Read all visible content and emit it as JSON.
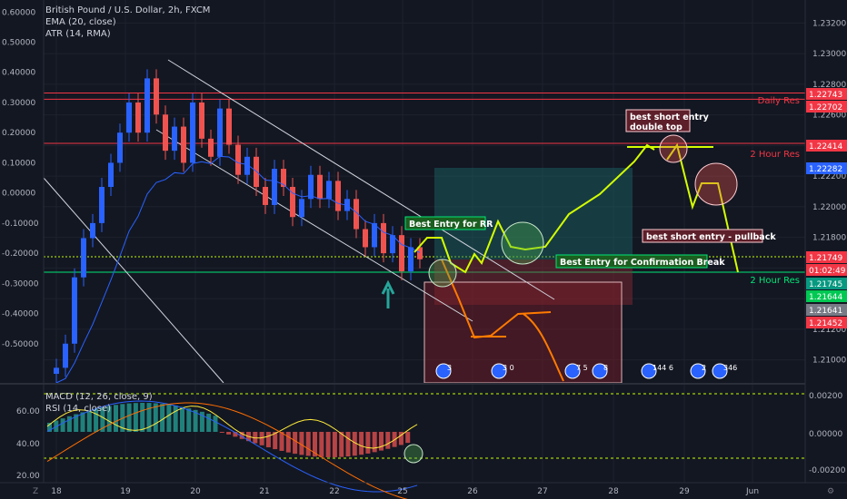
{
  "header": {
    "symbol": "British Pound / U.S. Dollar, 2h, FXCM",
    "ema": "EMA (20, close)",
    "atr": "ATR (14, RMA)"
  },
  "lower_pane": {
    "macd": "MACD (12, 26, close, 9)",
    "rsi": "RSI (14, close)"
  },
  "annotations": {
    "best_entry_rr": "Best Entry for RR",
    "best_entry_break": "Best Entry for Confirmation Break",
    "short_double_top_1": "best short entry",
    "short_double_top_2": "double top",
    "short_pullback": "best short entry - pullback",
    "daily_res": "Daily Res",
    "two_hour_res_top": "2 Hour Res",
    "two_hour_res_bottom": "2 Hour Res"
  },
  "price_tags": [
    {
      "text": "1.22743",
      "color": "#f23645"
    },
    {
      "text": "1.22702",
      "color": "#f23645"
    },
    {
      "text": "1.22414",
      "color": "#f23645"
    },
    {
      "text": "1.22282",
      "color": "#2962ff"
    },
    {
      "text": "1.21749",
      "color": "#f23645"
    },
    {
      "text": "01:02:49",
      "color": "#f23645"
    },
    {
      "text": "1.21745",
      "color": "#089981"
    },
    {
      "text": "1.21644",
      "color": "#00c853"
    },
    {
      "text": "1.21641",
      "color": "#787b86"
    },
    {
      "text": "1.21452",
      "color": "#f23645"
    }
  ],
  "event_badges": [
    "3",
    "3 0",
    "7 5",
    "8",
    "144 6",
    "2",
    "346"
  ],
  "colors": {
    "up": "#2962ff",
    "down": "#ef5350",
    "ema": "#2962ff",
    "background": "#131722"
  },
  "chart_data": {
    "type": "candlestick",
    "title": "British Pound / U.S. Dollar, 2h, FXCM",
    "x_ticks": [
      "18",
      "19",
      "20",
      "21",
      "22",
      "25",
      "26",
      "27",
      "28",
      "29",
      "Jun"
    ],
    "right_axis_ticks": [
      "1.23200",
      "1.23000",
      "1.22800",
      "1.22600",
      "1.22400",
      "1.22200",
      "1.22000",
      "1.21800",
      "1.21600",
      "1.21400",
      "1.21200",
      "1.21000"
    ],
    "right_ylim": [
      1.2085,
      1.2335
    ],
    "left_axis_ticks": [
      "0.60000",
      "0.50000",
      "0.40000",
      "0.30000",
      "0.20000",
      "0.10000",
      "0.00000",
      "-0.10000",
      "-0.20000",
      "-0.30000",
      "-0.40000",
      "-0.50000"
    ],
    "left_ylim": [
      -0.63,
      0.64
    ],
    "lower_left_ticks": [
      "60.00",
      "40.00",
      "20.00"
    ],
    "lower_right_ticks": [
      "0.00200",
      "0.00000",
      "-0.00200"
    ],
    "horizontal_levels": [
      {
        "name": "Daily Res",
        "value": 1.22743
      },
      {
        "name": "Daily Res",
        "value": 1.22702
      },
      {
        "name": "2 Hour Res",
        "value": 1.22414
      },
      {
        "name": "2 Hour Res",
        "value": 1.21745
      }
    ]
  }
}
